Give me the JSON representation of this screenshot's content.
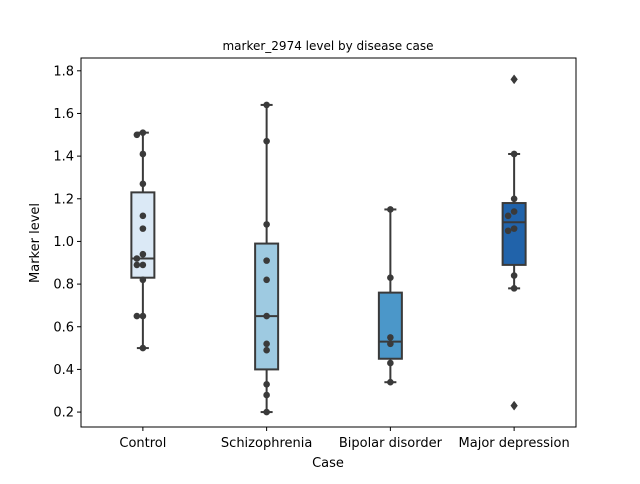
{
  "chart_data": {
    "type": "box",
    "title": "marker_2974 level by disease case",
    "xlabel": "Case",
    "ylabel": "Marker level",
    "categories": [
      "Control",
      "Schizophrenia",
      "Bipolar disorder",
      "Major depression"
    ],
    "ylim": [
      0.13,
      1.86
    ],
    "yticks": [
      0.2,
      0.4,
      0.6,
      0.8,
      1.0,
      1.2,
      1.4,
      1.6,
      1.8
    ],
    "ytick_labels": [
      "0.2",
      "0.4",
      "0.6",
      "0.8",
      "1.0",
      "1.2",
      "1.4",
      "1.6",
      "1.8"
    ],
    "grid": false,
    "boxes": [
      {
        "category": "Control",
        "whisker_low": 0.5,
        "q1": 0.83,
        "median": 0.92,
        "q3": 1.23,
        "whisker_high": 1.51,
        "outliers": [],
        "color": "#dbe9f6"
      },
      {
        "category": "Schizophrenia",
        "whisker_low": 0.2,
        "q1": 0.4,
        "median": 0.65,
        "q3": 0.99,
        "whisker_high": 1.64,
        "outliers": [],
        "color": "#9ecae1"
      },
      {
        "category": "Bipolar disorder",
        "whisker_low": 0.34,
        "q1": 0.45,
        "median": 0.53,
        "q3": 0.76,
        "whisker_high": 1.15,
        "outliers": [],
        "color": "#4b97c9"
      },
      {
        "category": "Major depression",
        "whisker_low": 0.78,
        "q1": 0.89,
        "median": 1.09,
        "q3": 1.18,
        "whisker_high": 1.41,
        "outliers": [
          1.76,
          0.23
        ],
        "color": "#2163aa"
      }
    ],
    "points": [
      {
        "category": "Control",
        "values": [
          1.51,
          1.5,
          1.41,
          1.27,
          1.12,
          1.06,
          0.94,
          0.92,
          0.89,
          0.89,
          0.82,
          0.65,
          0.65,
          0.5
        ]
      },
      {
        "category": "Schizophrenia",
        "values": [
          1.64,
          1.47,
          1.08,
          0.91,
          0.82,
          0.65,
          0.52,
          0.49,
          0.33,
          0.28,
          0.2
        ]
      },
      {
        "category": "Bipolar disorder",
        "values": [
          1.15,
          0.83,
          0.55,
          0.52,
          0.43,
          0.34
        ]
      },
      {
        "category": "Major depression",
        "values": [
          1.41,
          1.2,
          1.14,
          1.12,
          1.06,
          1.05,
          0.84,
          0.78
        ]
      }
    ],
    "point_color": "#3a3a3a",
    "line_color": "#3a3a3a"
  }
}
